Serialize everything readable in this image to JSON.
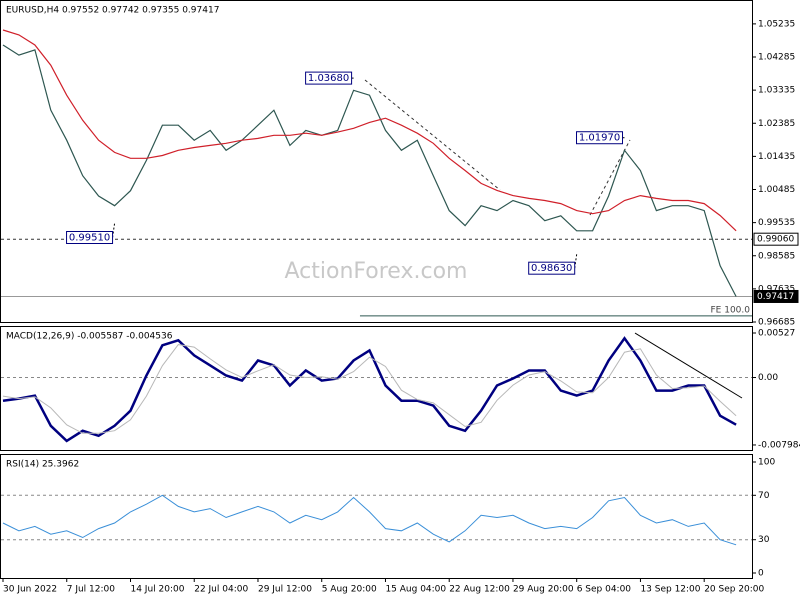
{
  "watermark": "ActionForex.com",
  "chart_data": [
    {
      "type": "line",
      "title": "EURUSD,H4  0.97552 0.97742 0.97355 0.97417",
      "x": [
        0,
        1,
        2,
        3,
        4,
        5,
        6,
        7,
        8,
        9,
        10,
        11,
        12,
        13,
        14,
        15,
        16,
        17,
        18,
        19,
        20,
        21,
        22,
        23,
        24,
        25,
        26,
        27,
        28,
        29,
        30,
        31,
        32,
        33,
        34,
        35,
        36,
        37,
        38,
        39,
        40,
        41,
        42,
        43,
        44,
        45,
        46
      ],
      "xlim": [
        0,
        47
      ],
      "ylim": [
        0.96685,
        1.0592
      ],
      "yticks": [
        1.05235,
        1.04285,
        1.03335,
        1.02385,
        1.01435,
        1.00485,
        0.99535,
        0.98585,
        0.97635,
        0.96685
      ],
      "series": [
        {
          "name": "EURUSD",
          "color": "#2e5751",
          "values": [
            1.0463,
            1.0434,
            1.0449,
            1.0276,
            1.019,
            1.0088,
            1.003,
            1.0002,
            1.0045,
            1.0132,
            1.0233,
            1.0233,
            1.019,
            1.0218,
            1.0161,
            1.019,
            1.0233,
            1.0276,
            1.0175,
            1.0218,
            1.0204,
            1.0218,
            1.0333,
            1.0319,
            1.0218,
            1.0161,
            1.019,
            1.0088,
            0.9988,
            0.9945,
            1.0002,
            0.9988,
            1.0017,
            1.0002,
            0.9959,
            0.9973,
            0.993,
            0.993,
            1.003,
            1.0161,
            1.0103,
            0.9988,
            1.0002,
            1.0002,
            0.9988,
            0.983,
            0.97417
          ]
        },
        {
          "name": "MA",
          "color": "#d0202a",
          "values": [
            1.0506,
            1.0492,
            1.0463,
            1.0405,
            1.0319,
            1.0247,
            1.019,
            1.0155,
            1.0138,
            1.0138,
            1.0146,
            1.0161,
            1.0169,
            1.0175,
            1.0181,
            1.019,
            1.0195,
            1.0204,
            1.0204,
            1.021,
            1.0204,
            1.0213,
            1.0224,
            1.0241,
            1.0253,
            1.0233,
            1.021,
            1.0181,
            1.0138,
            1.0103,
            1.0066,
            1.0046,
            1.0031,
            1.0023,
            1.0017,
            1.0008,
            0.9988,
            0.9979,
            0.9988,
            1.0017,
            1.0031,
            1.0023,
            1.0017,
            1.0017,
            1.0008,
            0.9974,
            0.993
          ]
        }
      ],
      "annotations": [
        {
          "label": "1.03680",
          "x": 22,
          "value": 1.0368
        },
        {
          "label": "0.99510",
          "x": 7,
          "value": 0.9951
        },
        {
          "label": "1.01970",
          "x": 39,
          "value": 1.0197
        },
        {
          "label": "0.98630",
          "x": 36,
          "value": 0.9863
        }
      ],
      "hlines": [
        {
          "label": "0.99060",
          "value": 0.9906,
          "style": "dashed"
        },
        {
          "label": "0.97417",
          "value": 0.97417,
          "style": "current"
        }
      ],
      "fe": {
        "label": "FE 100.0",
        "value": 0.9686,
        "x": 22.4
      }
    },
    {
      "type": "line",
      "title": "MACD(12,26,9) -0.005587 -0.004536",
      "ylim": [
        -0.00858,
        0.00598
      ],
      "yticks": [
        0.00527,
        {
          "value": 0,
          "label": "0.00"
        },
        -0.007984
      ],
      "levels": [
        0
      ],
      "series": [
        {
          "name": "MACD",
          "color": "#000080",
          "width": 2.5,
          "values": [
            -0.00274,
            -0.0025,
            -0.00214,
            -0.00571,
            -0.0075,
            -0.00631,
            -0.0069,
            -0.00571,
            -0.00393,
            0.00024,
            0.00381,
            0.0044,
            0.00262,
            0.00143,
            0.00024,
            -0.00036,
            0.00202,
            0.00143,
            -0.00095,
            0.00083,
            -0.00036,
            -0.00012,
            0.00202,
            0.00321,
            -0.00095,
            -0.00274,
            -0.00274,
            -0.00333,
            -0.00571,
            -0.00631,
            -0.00393,
            -0.00095,
            -0.00012,
            0.00083,
            0.00083,
            -0.00155,
            -0.00214,
            -0.00155,
            0.00202,
            0.00464,
            0.00202,
            -0.00155,
            -0.00155,
            -0.00095,
            -0.00095,
            -0.00452,
            -0.00559
          ]
        },
        {
          "name": "Signal",
          "color": "#b8b8b8",
          "width": 1,
          "values": [
            -0.0022,
            -0.0025,
            -0.0023,
            -0.0036,
            -0.0056,
            -0.0066,
            -0.0066,
            -0.0063,
            -0.005,
            -0.0022,
            0.0014,
            0.0039,
            0.0036,
            0.0022,
            0.0009,
            0.0,
            0.0008,
            0.0015,
            0.0003,
            0.0,
            0.0001,
            -0.0002,
            0.0007,
            0.0024,
            0.0013,
            -0.0015,
            -0.0026,
            -0.003,
            -0.0044,
            -0.0058,
            -0.0053,
            -0.0027,
            -0.0009,
            0.0003,
            0.0007,
            -0.0004,
            -0.0017,
            -0.0018,
            0.0,
            0.003,
            0.0034,
            0.0003,
            -0.0013,
            -0.0012,
            -0.001,
            -0.0028,
            -0.004536
          ]
        }
      ]
    },
    {
      "type": "line",
      "title": "RSI(14) 25.3962",
      "ylim": [
        -4.5,
        106.3
      ],
      "yticks": [
        100,
        70,
        30,
        0
      ],
      "levels": [
        70,
        30
      ],
      "xticks": [
        {
          "value": 0,
          "label": "30 Jun 2022"
        },
        {
          "value": 4,
          "label": "7 Jul 12:00"
        },
        {
          "value": 8,
          "label": "14 Jul 20:00"
        },
        {
          "value": 12,
          "label": "22 Jul 04:00"
        },
        {
          "value": 16,
          "label": "29 Jul 12:00"
        },
        {
          "value": 20,
          "label": "5 Aug 20:00"
        },
        {
          "value": 24,
          "label": "15 Aug 04:00"
        },
        {
          "value": 28,
          "label": "22 Aug 12:00"
        },
        {
          "value": 32,
          "label": "29 Aug 20:00"
        },
        {
          "value": 36,
          "label": "6 Sep 04:00"
        },
        {
          "value": 40,
          "label": "13 Sep 12:00"
        },
        {
          "value": 44,
          "label": "20 Sep 20:00"
        }
      ],
      "series": [
        {
          "name": "RSI",
          "color": "#3a8fd8",
          "width": 1,
          "values": [
            45,
            38,
            42,
            35,
            38,
            32,
            40,
            45,
            55,
            62,
            70,
            60,
            55,
            58,
            50,
            55,
            60,
            55,
            45,
            52,
            48,
            55,
            68,
            55,
            40,
            38,
            45,
            35,
            28,
            38,
            52,
            50,
            52,
            45,
            40,
            42,
            40,
            50,
            65,
            68,
            52,
            45,
            48,
            42,
            45,
            30,
            25.3962
          ]
        }
      ]
    }
  ]
}
